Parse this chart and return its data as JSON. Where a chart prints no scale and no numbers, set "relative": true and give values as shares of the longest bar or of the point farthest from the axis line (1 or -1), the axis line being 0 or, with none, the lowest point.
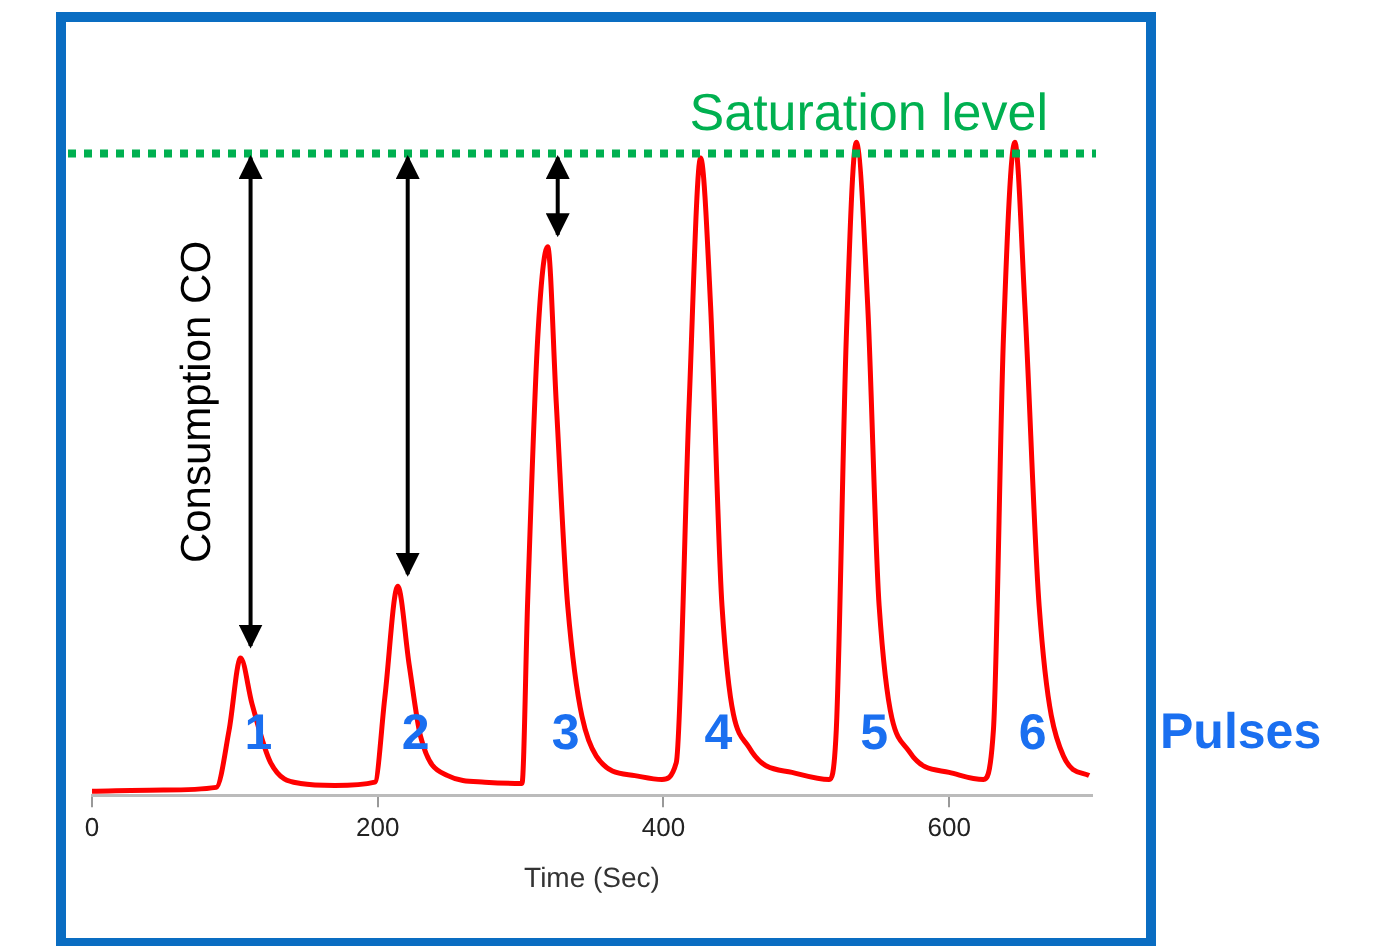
{
  "chart_data": {
    "type": "line",
    "relative": true,
    "xlabel": "Time (Sec)",
    "xlim": [
      0,
      700
    ],
    "xticks": [
      0,
      200,
      400,
      600
    ],
    "grid": false,
    "legend": false,
    "marker": "none",
    "line_style": "solid",
    "tick_labels": "x",
    "series": [
      {
        "color": "#ff0000",
        "x": [
          0,
          50,
          87,
          96,
          104,
          112,
          125,
          146,
          170,
          198,
          205,
          214,
          222,
          230,
          249,
          275,
          301,
          305,
          312,
          319,
          325,
          333,
          353,
          380,
          399,
          409,
          418,
          426,
          433,
          441,
          460,
          490,
          516,
          521,
          528,
          535,
          543,
          551,
          572,
          600,
          624,
          631,
          638,
          646,
          653,
          663,
          680,
          698
        ],
        "values": [
          0.006,
          0.008,
          0.012,
          0.1,
          0.21,
          0.14,
          0.05,
          0.018,
          0.015,
          0.02,
          0.15,
          0.32,
          0.2,
          0.09,
          0.03,
          0.02,
          0.018,
          0.3,
          0.7,
          0.84,
          0.6,
          0.29,
          0.06,
          0.03,
          0.024,
          0.05,
          0.6,
          0.976,
          0.75,
          0.29,
          0.073,
          0.035,
          0.024,
          0.1,
          0.7,
          1.0,
          0.75,
          0.29,
          0.067,
          0.035,
          0.024,
          0.1,
          0.7,
          1.0,
          0.75,
          0.29,
          0.06,
          0.03
        ]
      }
    ],
    "ref_lines": [
      {
        "axis": "y",
        "value": 0.983,
        "label": "Saturation level",
        "color": "#00b050",
        "line_style": "dotted"
      }
    ],
    "annotations": [
      "Consumption CO",
      "1",
      "2",
      "3",
      "4",
      "5",
      "6",
      "Pulses"
    ]
  }
}
